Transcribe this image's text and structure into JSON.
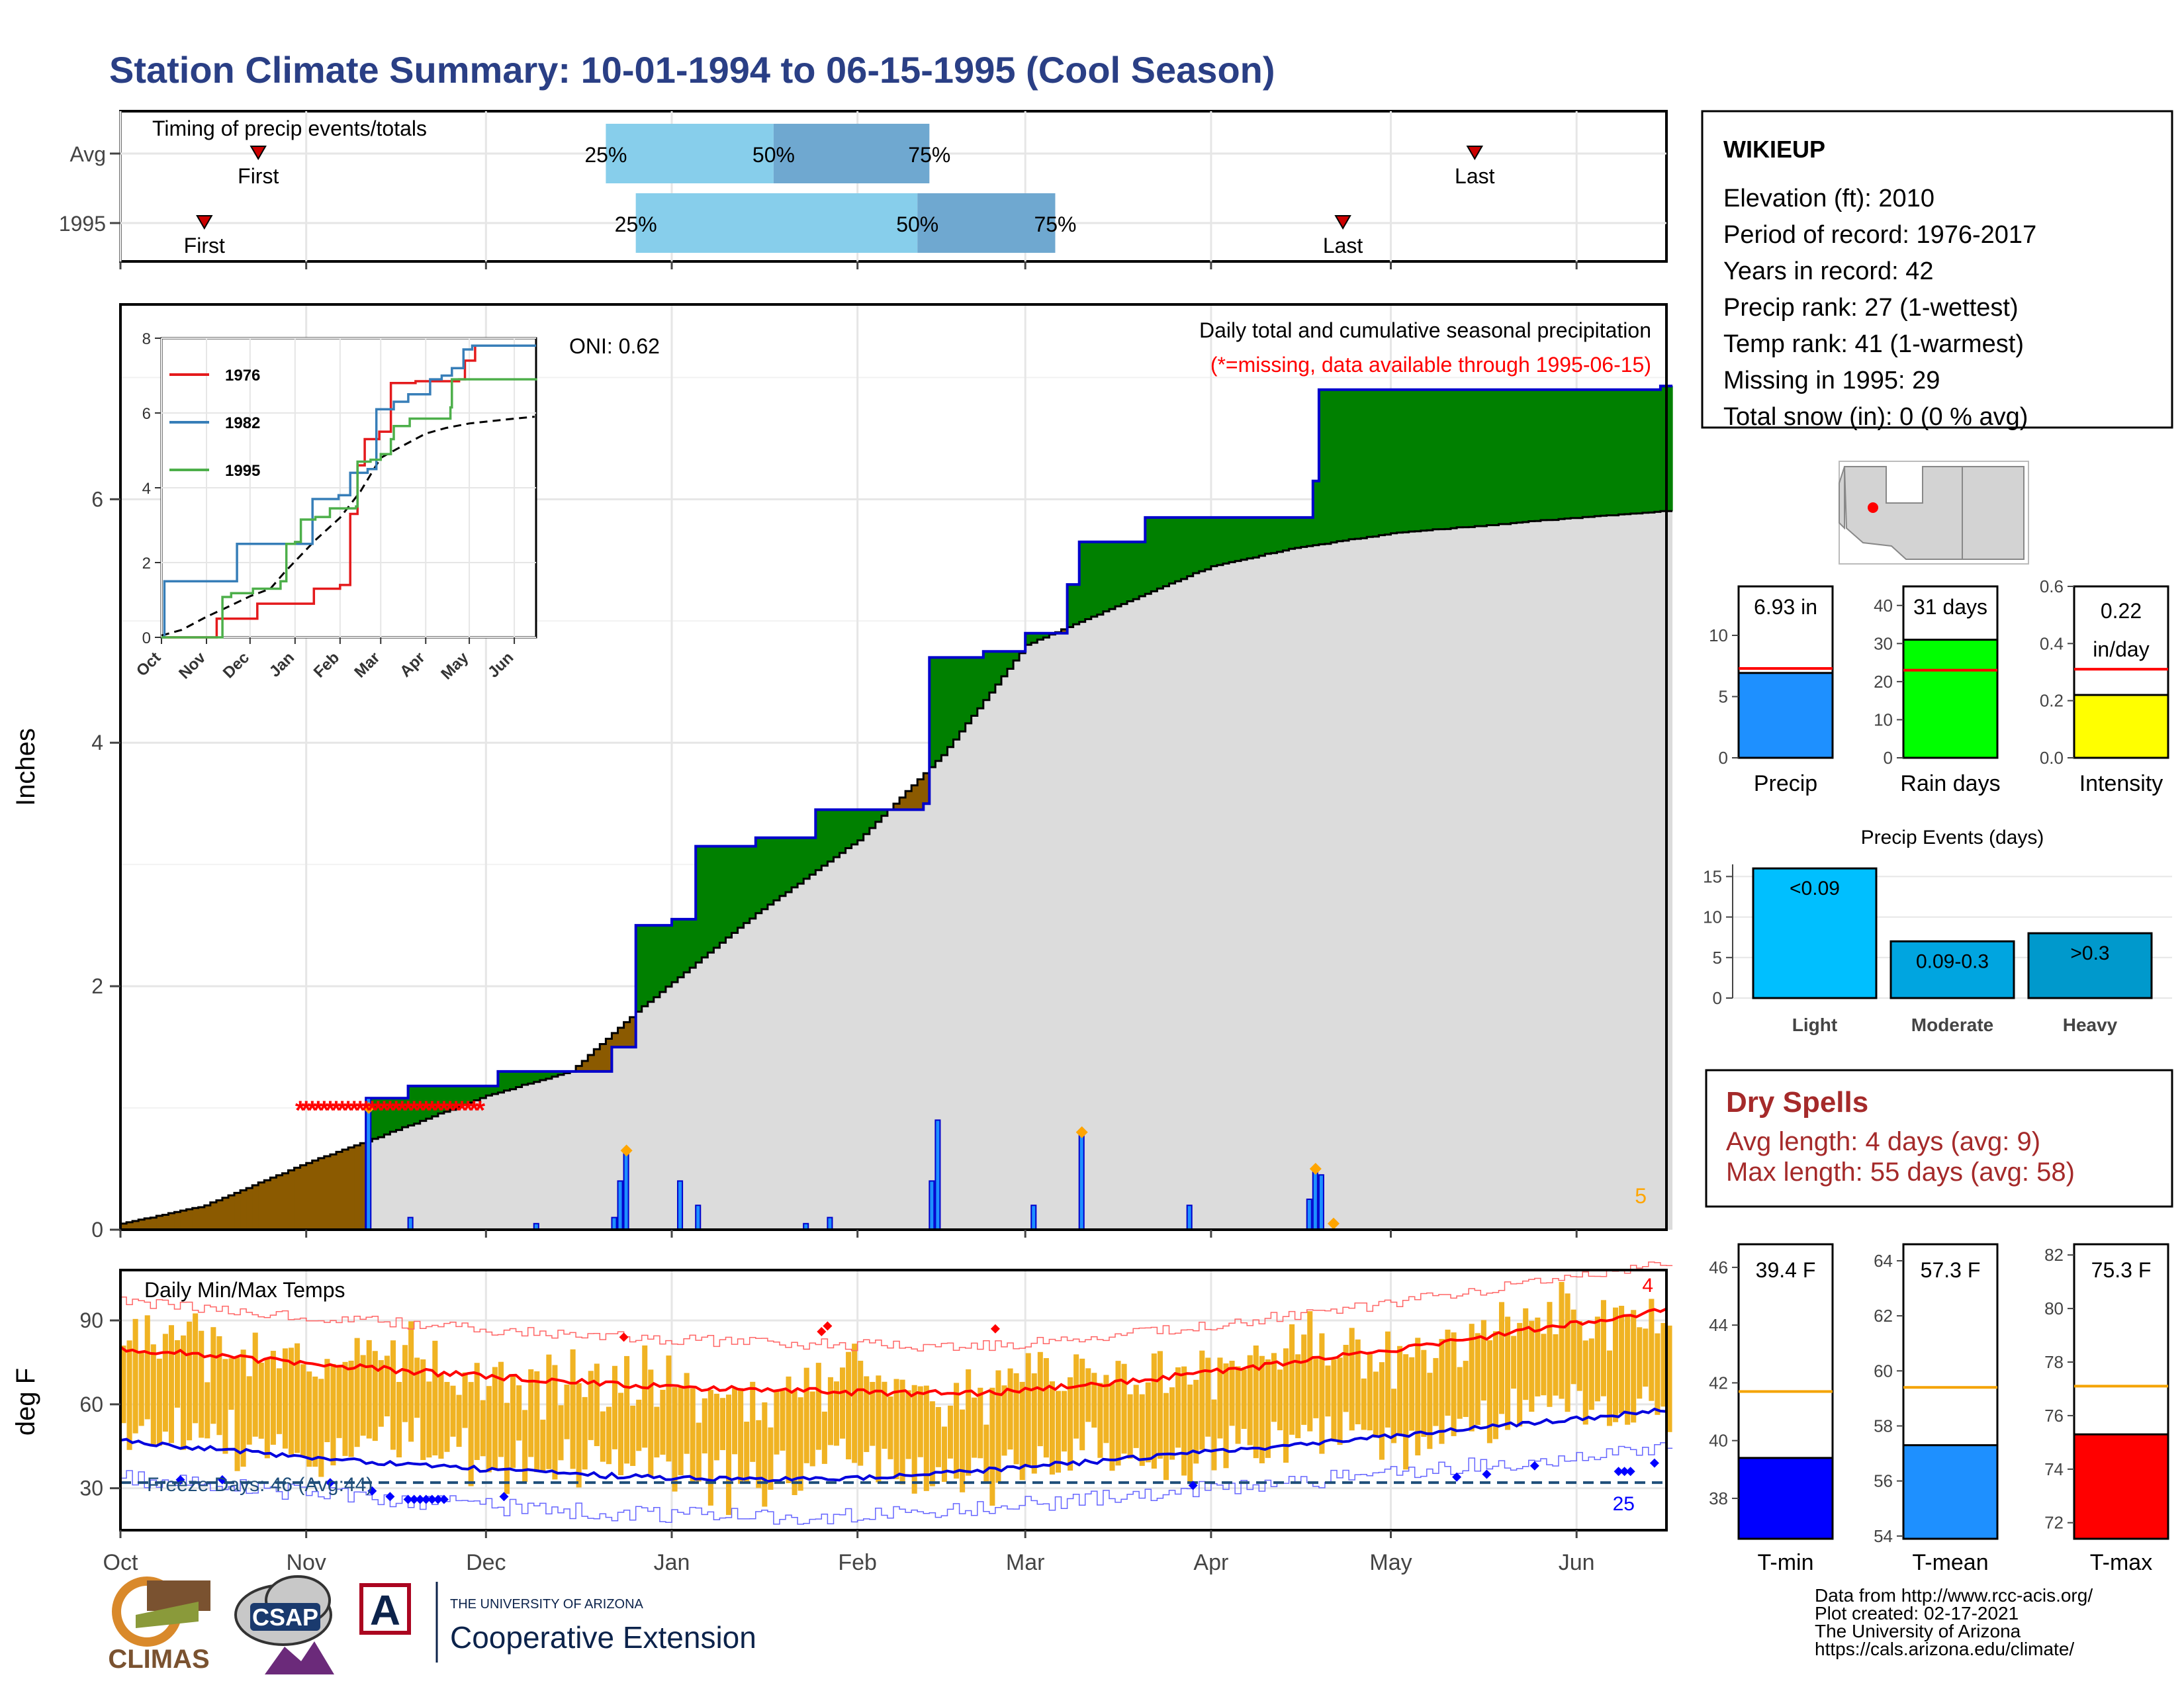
{
  "title": "Station Climate Summary: 10-01-1994 to 06-15-1995 (Cool Season)",
  "colors": {
    "title": "#2a3f85",
    "light_blue": "#87ceeb",
    "mid_blue": "#6fa8d0",
    "brown": "#8b5a00",
    "green": "#008000",
    "gray_fill": "#dcdcdc",
    "red": "#ff0000",
    "blue": "#0000ff",
    "orange_bar": "#f0b323",
    "dry_spells": "#a52a2a",
    "precip_bar": "#1e90ff",
    "rain_bar": "#00ff00",
    "intensity_bar": "#ffff00",
    "freeze_line": "#1f4e79"
  },
  "timing": {
    "label": "Timing of precip events/totals",
    "rows": [
      {
        "name": "Avg",
        "first": "First",
        "last": "Last",
        "q25": "25%",
        "q50": "50%",
        "q75": "75%",
        "first_day": 23,
        "last_day": 226,
        "q25_day": 81,
        "q50_day": 109,
        "q75_day": 135
      },
      {
        "name": "1995",
        "first": "First",
        "last": "Last",
        "q25": "25%",
        "q50": "50%",
        "q75": "75%",
        "first_day": 14,
        "last_day": 204,
        "q25_day": 86,
        "q50_day": 133,
        "q75_day": 156
      }
    ]
  },
  "station": {
    "name": "WIKIEUP",
    "lines": [
      "Elevation (ft): 2010",
      "Period of record: 1976-2017",
      "Years in record: 42",
      "Precip rank: 27 (1-wettest)",
      "Temp rank: 41 (1-warmest)",
      "Missing in 1995: 29",
      "Total snow (in): 0 (0 % avg)"
    ]
  },
  "main": {
    "ylabel": "Inches",
    "oni": "ONI: 0.62",
    "note1": "Daily total and cumulative seasonal precipitation",
    "note2": "(*=missing, data available through 1995-06-15)",
    "corner_count": "5",
    "yticks": [
      "0",
      "2",
      "4",
      "6"
    ]
  },
  "months": [
    "Oct",
    "Nov",
    "Dec",
    "Jan",
    "Feb",
    "Mar",
    "Apr",
    "May",
    "Jun"
  ],
  "inset": {
    "yticks": [
      "0",
      "2",
      "4",
      "6",
      "8"
    ],
    "legend": [
      "1976",
      "1982",
      "1995"
    ],
    "series_colors": [
      "#e41a1c",
      "#377eb8",
      "#4daf4a"
    ]
  },
  "bars_small": [
    {
      "label": "Precip",
      "value_label": "6.93 in",
      "yticks": [
        "0",
        "5",
        "10"
      ],
      "ymax": 14,
      "value": 6.93,
      "avg": 7.3
    },
    {
      "label": "Rain days",
      "value_label": "31 days",
      "yticks": [
        "0",
        "10",
        "20",
        "30",
        "40"
      ],
      "ymax": 45,
      "value": 31,
      "avg": 23
    },
    {
      "label": "Intensity",
      "value_label_1": "0.22",
      "value_label_2": "in/day",
      "yticks": [
        "0.0",
        "0.2",
        "0.4",
        "0.6"
      ],
      "ymax": 0.6,
      "value": 0.22,
      "avg": 0.31
    }
  ],
  "events": {
    "title": "Precip Events (days)",
    "yticks": [
      "0",
      "5",
      "10",
      "15"
    ],
    "bars": [
      {
        "cat": "Light",
        "label": "<0.09",
        "value": 16,
        "color": "#00bfff"
      },
      {
        "cat": "Moderate",
        "label": "0.09-0.3",
        "value": 7,
        "color": "#00a5e0"
      },
      {
        "cat": "Heavy",
        "label": ">0.3",
        "value": 8,
        "color": "#0099cc"
      }
    ]
  },
  "dry_spells": {
    "title": "Dry Spells",
    "avg": "Avg length: 4 days (avg: 9)",
    "max": "Max length: 55 days (avg: 58)"
  },
  "temps": {
    "title": "Daily Min/Max Temps",
    "ylabel": "deg F",
    "yticks": [
      "30",
      "60",
      "90"
    ],
    "freeze": "Freeze Days: 46 (Avg:44)",
    "count_top": "4",
    "count_bottom": "25"
  },
  "temp_bars": [
    {
      "label": "T-min",
      "value_label": "39.4 F",
      "yticks": [
        "38",
        "40",
        "42",
        "44",
        "46"
      ],
      "ymin": 36.6,
      "ymax": 46.8,
      "value": 39.4,
      "avg": 41.7,
      "color": "#0000ff"
    },
    {
      "label": "T-mean",
      "value_label": "57.3 F",
      "yticks": [
        "54",
        "56",
        "58",
        "60",
        "62",
        "64"
      ],
      "ymin": 53.9,
      "ymax": 64.6,
      "value": 57.3,
      "avg": 59.4,
      "color": "#1e90ff"
    },
    {
      "label": "T-max",
      "value_label": "75.3 F",
      "yticks": [
        "72",
        "74",
        "76",
        "78",
        "80",
        "82"
      ],
      "ymin": 71.4,
      "ymax": 82.4,
      "value": 75.3,
      "avg": 77.1,
      "color": "#ff0000"
    }
  ],
  "footer": {
    "line1": "Data from http://www.rcc-acis.org/",
    "line2": "Plot created: 02-17-2021",
    "line3": "The University of Arizona",
    "line4": "https://cals.arizona.edu/climate/",
    "climas": "CLIMAS",
    "csap": "CSAP",
    "ua_small": "THE UNIVERSITY OF ARIZONA",
    "ua_big": "Cooperative Extension"
  },
  "chart_data": {
    "type": "area",
    "title": "Station Climate Summary: 10-01-1994 to 06-15-1995 (Cool Season)",
    "ylabel": "Inches",
    "ylim": [
      0,
      7.6
    ],
    "x_range": [
      "1994-10-01",
      "1995-06-15"
    ],
    "series": [
      {
        "name": "1995",
        "points": [
          [
            "1994-10-01",
            0
          ],
          [
            "1994-11-10",
            0
          ],
          [
            "1994-11-11",
            1.08
          ],
          [
            "1994-11-18",
            1.18
          ],
          [
            "1994-12-03",
            1.3
          ],
          [
            "1994-12-22",
            1.5
          ],
          [
            "1994-12-26",
            2.5
          ],
          [
            "1995-01-01",
            2.55
          ],
          [
            "1995-01-05",
            3.15
          ],
          [
            "1995-01-15",
            3.22
          ],
          [
            "1995-01-25",
            3.45
          ],
          [
            "1995-02-12",
            3.5
          ],
          [
            "1995-02-13",
            4.7
          ],
          [
            "1995-02-22",
            4.75
          ],
          [
            "1995-03-01",
            4.9
          ],
          [
            "1995-03-08",
            5.3
          ],
          [
            "1995-03-10",
            5.65
          ],
          [
            "1995-03-21",
            5.85
          ],
          [
            "1995-04-18",
            6.15
          ],
          [
            "1995-04-19",
            6.9
          ],
          [
            "1995-06-15",
            6.93
          ]
        ]
      },
      {
        "name": "Average cumulative",
        "points": [
          [
            "1994-10-01",
            0.05
          ],
          [
            "1994-10-15",
            0.2
          ],
          [
            "1994-11-01",
            0.55
          ],
          [
            "1994-11-15",
            0.8
          ],
          [
            "1994-12-01",
            1.1
          ],
          [
            "1994-12-15",
            1.3
          ],
          [
            "1994-12-25",
            1.75
          ],
          [
            "1995-01-15",
            2.6
          ],
          [
            "1995-02-01",
            3.2
          ],
          [
            "1995-02-15",
            3.9
          ],
          [
            "1995-03-01",
            4.8
          ],
          [
            "1995-03-15",
            5.1
          ],
          [
            "1995-04-01",
            5.45
          ],
          [
            "1995-04-15",
            5.6
          ],
          [
            "1995-05-01",
            5.72
          ],
          [
            "1995-06-01",
            5.85
          ],
          [
            "1995-06-15",
            5.9
          ]
        ]
      }
    ],
    "daily_precip_inches": [
      [
        "1994-11-11",
        1.08
      ],
      [
        "1994-11-18",
        0.1
      ],
      [
        "1994-12-09",
        0.05
      ],
      [
        "1994-12-22",
        0.1
      ],
      [
        "1994-12-23",
        0.4
      ],
      [
        "1994-12-24",
        0.65
      ],
      [
        "1995-01-02",
        0.4
      ],
      [
        "1995-01-05",
        0.2
      ],
      [
        "1995-01-23",
        0.05
      ],
      [
        "1995-01-27",
        0.1
      ],
      [
        "1995-02-13",
        0.4
      ],
      [
        "1995-02-14",
        0.9
      ],
      [
        "1995-03-02",
        0.2
      ],
      [
        "1995-03-10",
        0.8
      ],
      [
        "1995-03-28",
        0.2
      ],
      [
        "1995-04-17",
        0.25
      ],
      [
        "1995-04-18",
        0.5
      ],
      [
        "1995-04-19",
        0.45
      ]
    ],
    "temps_legend": [
      "Daily Min/Max Temps"
    ],
    "temps_ylim": [
      15,
      108
    ]
  }
}
